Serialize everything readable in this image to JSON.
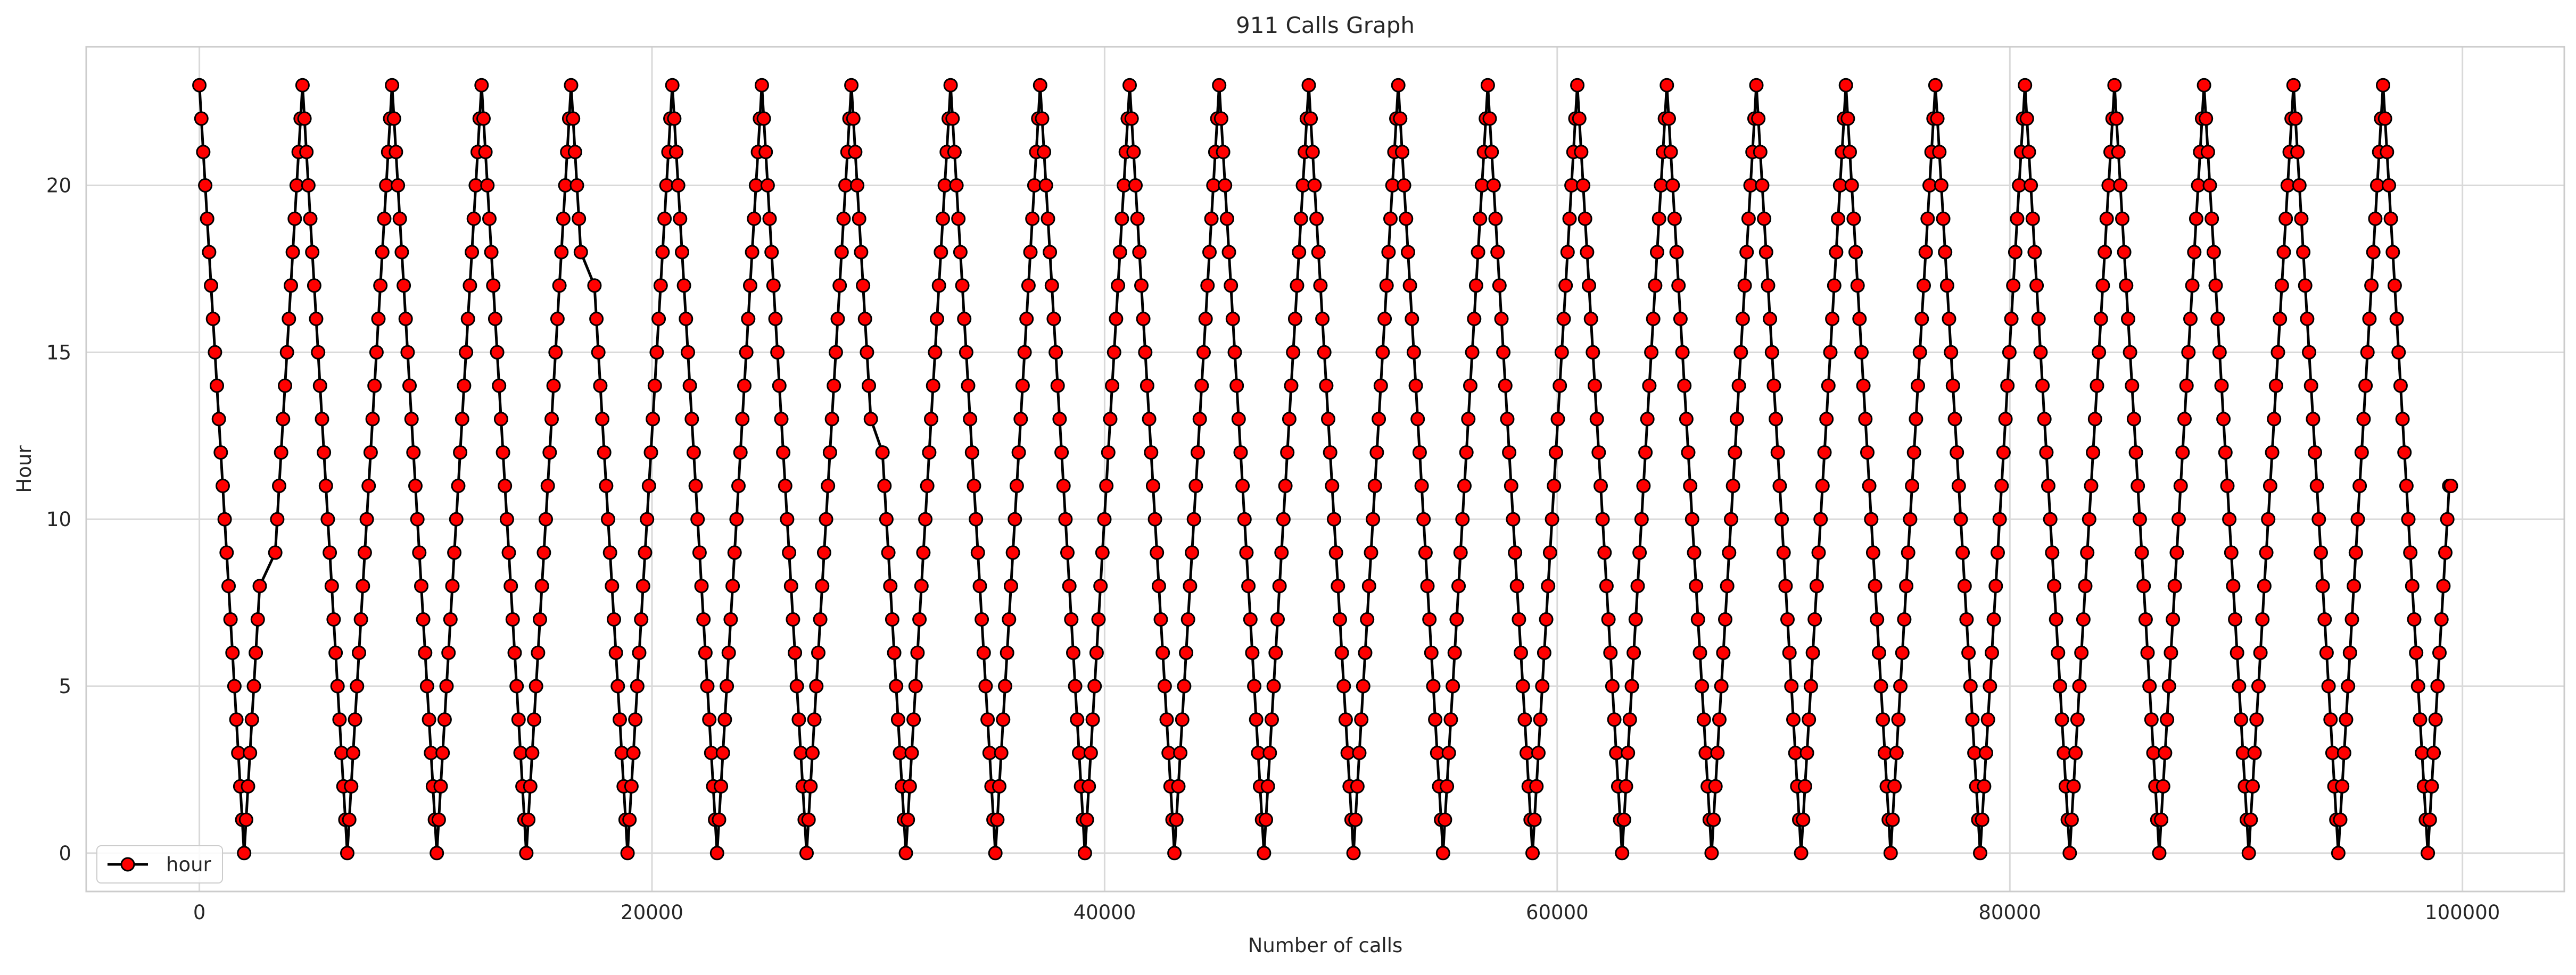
{
  "chart_data": {
    "type": "line",
    "title": "911 Calls Graph",
    "xlabel": "Number of calls",
    "ylabel": "Hour",
    "xlim": [
      -5000,
      104500
    ],
    "ylim": [
      -1.15,
      24.15
    ],
    "xticks": [
      0,
      20000,
      40000,
      60000,
      80000,
      100000
    ],
    "xtick_labels": [
      "0",
      "20000",
      "40000",
      "60000",
      "80000",
      "100000"
    ],
    "yticks": [
      0,
      5,
      10,
      15,
      20
    ],
    "ytick_labels": [
      "0",
      "5",
      "10",
      "15",
      "20"
    ],
    "grid": true,
    "legend_position": "lower-left",
    "series": [
      {
        "name": "hour",
        "x_range": [
          0,
          99491
        ],
        "y_range": [
          0,
          23
        ],
        "pattern": "hour of day cycles 0-23 repeatedly across the call index; every call is plotted as a red circle connected by a black line",
        "marker": "circle",
        "marker_face_color": "#ff0000",
        "marker_edge_color": "#000000",
        "line_color": "#000000"
      }
    ],
    "x_gaps": [
      [
        2700,
        3300
      ],
      [
        16900,
        17400
      ],
      [
        29700,
        30100
      ]
    ],
    "last_point": {
      "x": 99491,
      "y": 11
    }
  }
}
